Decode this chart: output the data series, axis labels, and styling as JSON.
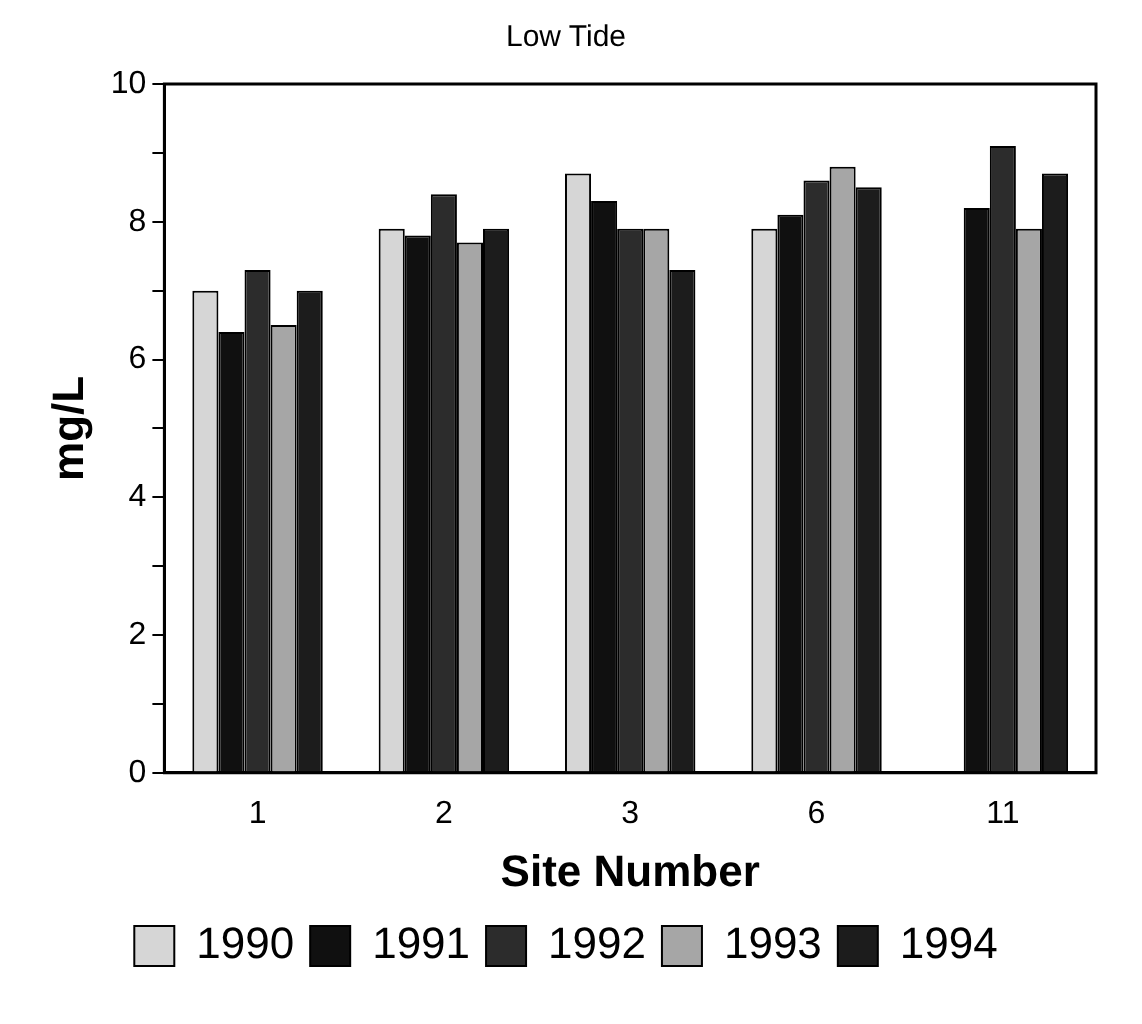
{
  "chart_data": {
    "type": "bar",
    "title": "Low Tide",
    "xlabel": "Site Number",
    "ylabel": "mg/L",
    "categories": [
      "1",
      "2",
      "3",
      "6",
      "11"
    ],
    "series": [
      {
        "name": "1990",
        "color": "#d6d6d6",
        "values": [
          7.0,
          7.9,
          8.7,
          7.9,
          null
        ]
      },
      {
        "name": "1991",
        "color": "#101010",
        "values": [
          6.4,
          7.8,
          8.3,
          8.1,
          8.2
        ]
      },
      {
        "name": "1992",
        "color": "#2c2c2c",
        "values": [
          7.3,
          8.4,
          7.9,
          8.6,
          9.1
        ]
      },
      {
        "name": "1993",
        "color": "#a6a6a6",
        "values": [
          6.5,
          7.7,
          7.9,
          8.8,
          7.9
        ]
      },
      {
        "name": "1994",
        "color": "#1c1c1c",
        "values": [
          7.0,
          7.9,
          7.3,
          8.5,
          8.7
        ]
      }
    ],
    "ylim": [
      0,
      10
    ],
    "yticks": [
      0,
      {
        "value": 1,
        "label": null
      },
      2,
      {
        "value": 3,
        "label": null
      },
      4,
      {
        "value": 5,
        "label": null
      },
      6,
      {
        "value": 7,
        "label": null
      },
      8,
      {
        "value": 9,
        "label": null
      },
      10
    ],
    "grid": false,
    "legend": "bottom"
  }
}
